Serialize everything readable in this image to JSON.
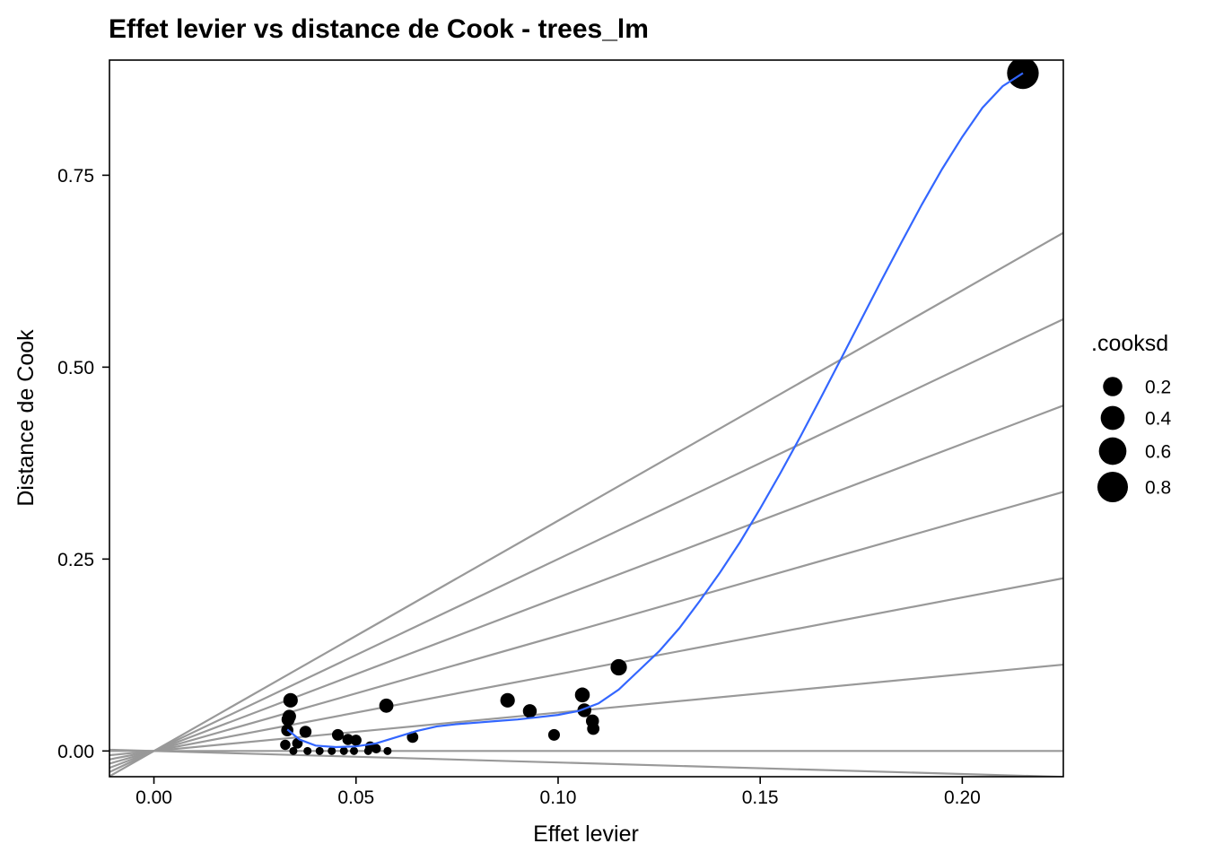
{
  "chart_data": {
    "type": "scatter",
    "title": "Effet levier vs distance de Cook - trees_lm",
    "xlabel": "Effet levier",
    "ylabel": "Distance de Cook",
    "xlim": [
      -0.011,
      0.225
    ],
    "ylim": [
      -0.0335,
      0.9
    ],
    "x_ticks": [
      0.0,
      0.05,
      0.1,
      0.15,
      0.2
    ],
    "x_tick_labels": [
      "0.00",
      "0.05",
      "0.10",
      "0.15",
      "0.20"
    ],
    "y_ticks": [
      0.0,
      0.25,
      0.5,
      0.75
    ],
    "y_tick_labels": [
      "0.00",
      "0.25",
      "0.50",
      "0.75"
    ],
    "grid": false,
    "reference_line_slopes": [
      -0.15,
      0.0,
      0.5,
      1.0,
      1.5,
      2.0,
      2.5,
      3.0
    ],
    "points": [
      {
        "x": 0.0325,
        "y": 0.008
      },
      {
        "x": 0.033,
        "y": 0.027
      },
      {
        "x": 0.0332,
        "y": 0.041
      },
      {
        "x": 0.0335,
        "y": 0.045
      },
      {
        "x": 0.0338,
        "y": 0.066
      },
      {
        "x": 0.0345,
        "y": 0.0
      },
      {
        "x": 0.0355,
        "y": 0.01
      },
      {
        "x": 0.0375,
        "y": 0.025
      },
      {
        "x": 0.038,
        "y": 0.0
      },
      {
        "x": 0.041,
        "y": 0.0
      },
      {
        "x": 0.044,
        "y": 0.0
      },
      {
        "x": 0.0455,
        "y": 0.021
      },
      {
        "x": 0.047,
        "y": 0.0
      },
      {
        "x": 0.048,
        "y": 0.015
      },
      {
        "x": 0.0495,
        "y": 0.0
      },
      {
        "x": 0.05,
        "y": 0.014
      },
      {
        "x": 0.053,
        "y": 0.0
      },
      {
        "x": 0.0535,
        "y": 0.006
      },
      {
        "x": 0.055,
        "y": 0.003
      },
      {
        "x": 0.0575,
        "y": 0.059
      },
      {
        "x": 0.0578,
        "y": 0.0
      },
      {
        "x": 0.064,
        "y": 0.018
      },
      {
        "x": 0.0875,
        "y": 0.066
      },
      {
        "x": 0.093,
        "y": 0.052
      },
      {
        "x": 0.099,
        "y": 0.021
      },
      {
        "x": 0.106,
        "y": 0.073
      },
      {
        "x": 0.1065,
        "y": 0.053
      },
      {
        "x": 0.1085,
        "y": 0.039
      },
      {
        "x": 0.1087,
        "y": 0.029
      },
      {
        "x": 0.115,
        "y": 0.109
      },
      {
        "x": 0.215,
        "y": 0.883
      }
    ],
    "smooth_curve": {
      "color": "#3366ff",
      "x": [
        0.033,
        0.036,
        0.04,
        0.045,
        0.05,
        0.055,
        0.06,
        0.065,
        0.07,
        0.075,
        0.08,
        0.085,
        0.09,
        0.095,
        0.1,
        0.105,
        0.11,
        0.115,
        0.12,
        0.125,
        0.13,
        0.135,
        0.14,
        0.145,
        0.15,
        0.155,
        0.16,
        0.165,
        0.17,
        0.175,
        0.18,
        0.185,
        0.19,
        0.195,
        0.2,
        0.205,
        0.21,
        0.215
      ],
      "y": [
        0.028,
        0.015,
        0.007,
        0.005,
        0.006,
        0.01,
        0.018,
        0.026,
        0.032,
        0.035,
        0.037,
        0.039,
        0.041,
        0.044,
        0.047,
        0.052,
        0.062,
        0.08,
        0.105,
        0.13,
        0.16,
        0.195,
        0.232,
        0.272,
        0.316,
        0.362,
        0.41,
        0.46,
        0.511,
        0.562,
        0.613,
        0.663,
        0.712,
        0.758,
        0.8,
        0.838,
        0.866,
        0.883
      ]
    },
    "legend": {
      "title": ".cooksd",
      "placement": "right",
      "items": [
        {
          "label": "0.2",
          "value": 0.2
        },
        {
          "label": "0.4",
          "value": 0.4
        },
        {
          "label": "0.6",
          "value": 0.6
        },
        {
          "label": "0.8",
          "value": 0.8
        }
      ]
    },
    "colors": {
      "points": "#000000",
      "reference_lines": "#999999",
      "smooth": "#3366ff"
    }
  }
}
